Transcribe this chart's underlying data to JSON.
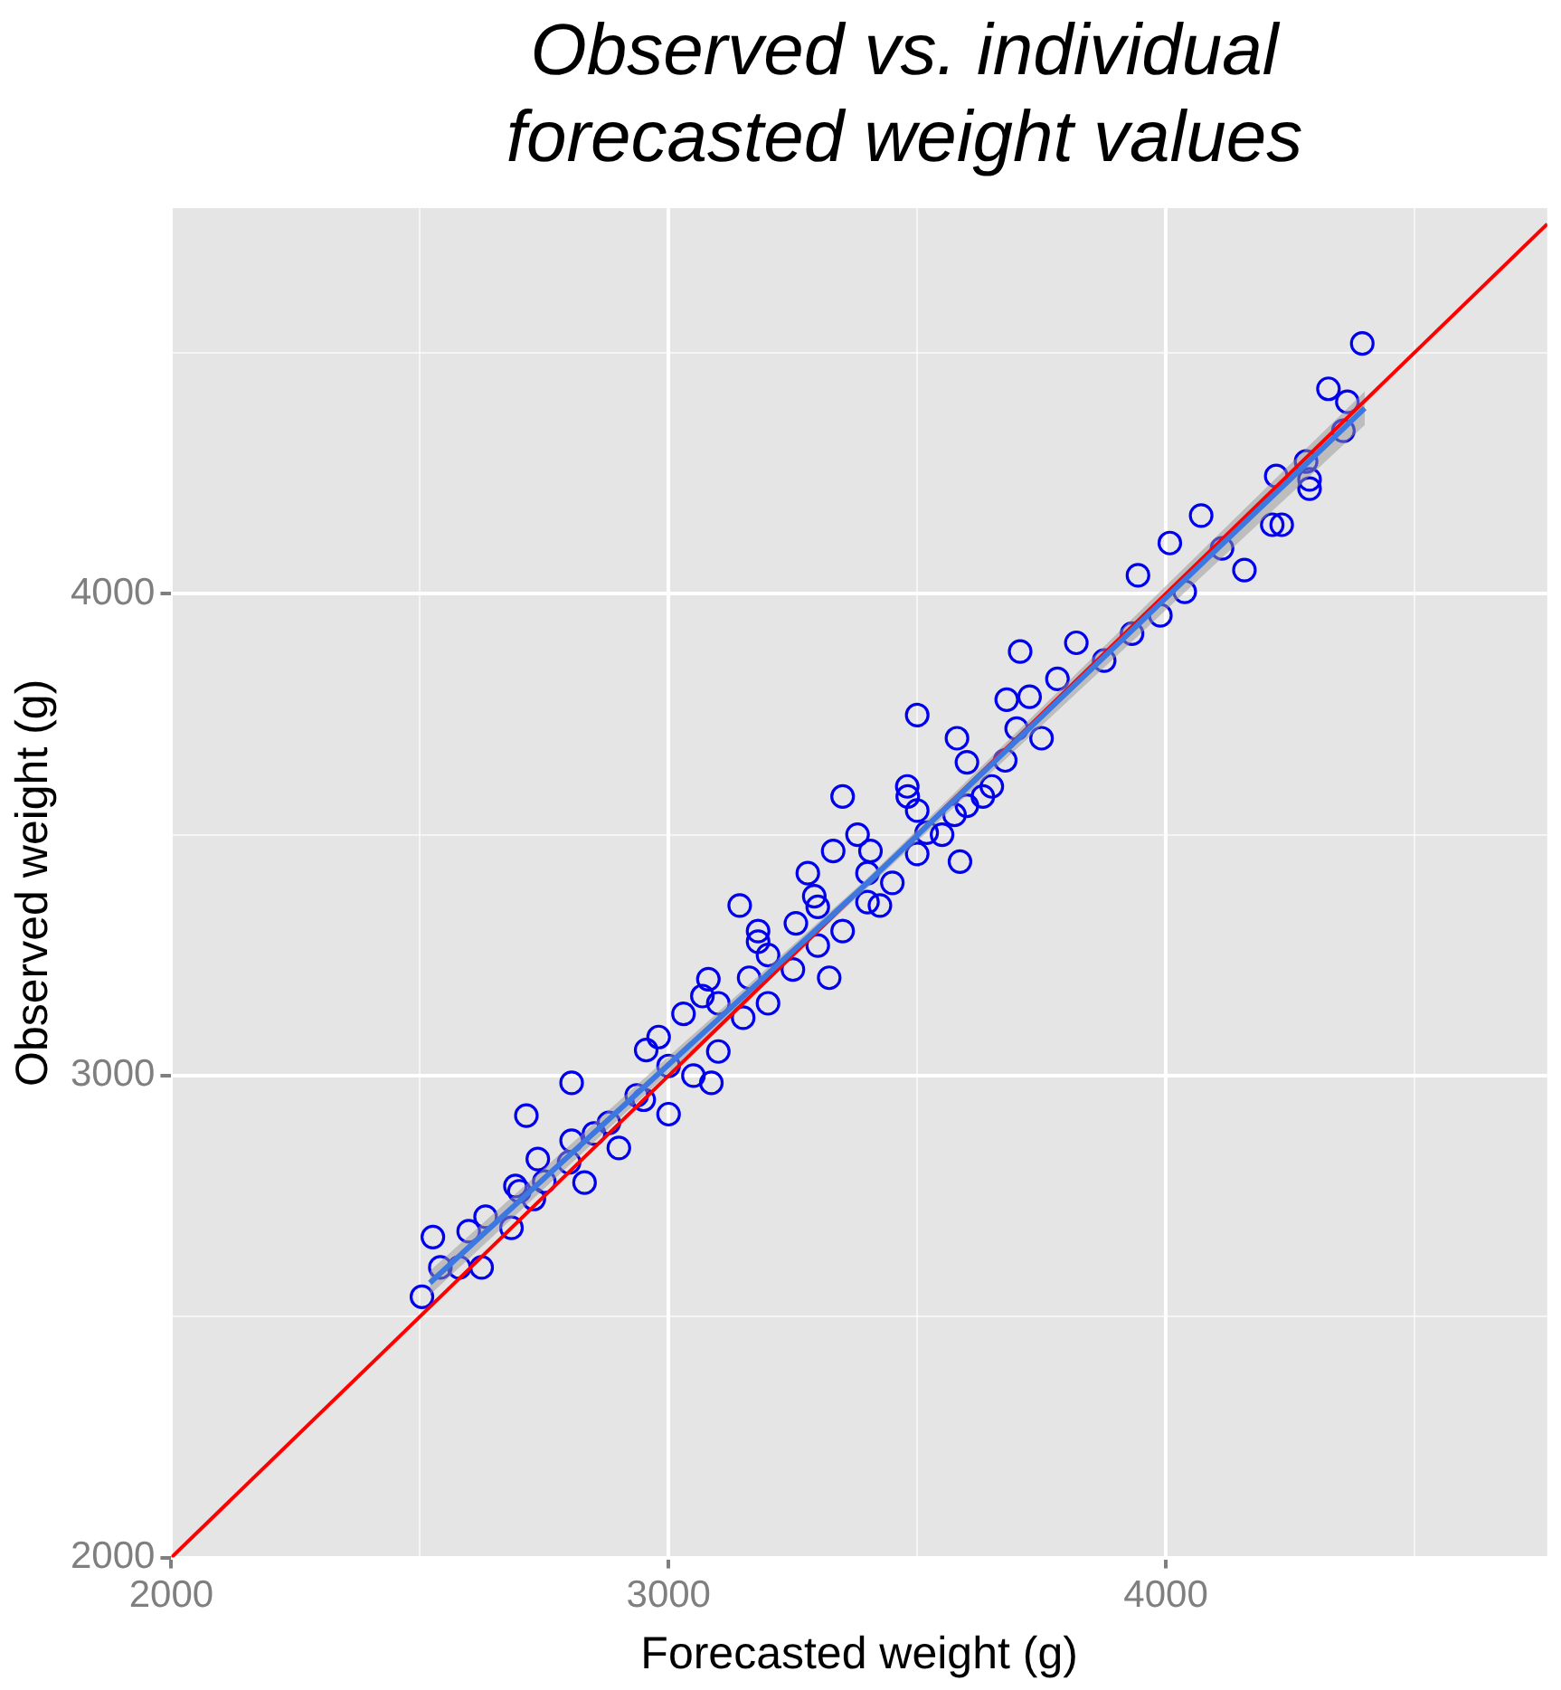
{
  "chart_data": {
    "type": "scatter",
    "title": "Observed vs. individual forecasted weight values",
    "xlabel": "Forecasted weight (g)",
    "ylabel": "Observed weight (g)",
    "xlim": [
      2000,
      4767
    ],
    "ylim": [
      2000,
      4800
    ],
    "xticks": [
      2000,
      {
        "value": 2500,
        "label": null
      },
      3000,
      {
        "value": 3500,
        "label": null
      },
      4000,
      {
        "value": 4500,
        "label": null
      }
    ],
    "yticks": [
      2000,
      {
        "value": 2500,
        "label": null
      },
      3000,
      {
        "value": 3500,
        "label": null
      },
      4000,
      {
        "value": 4500,
        "label": null
      }
    ],
    "grid": true,
    "legend": false,
    "series": [
      {
        "marker": "circle",
        "color": "#0000ee",
        "x": [
          2526,
          2504,
          2541,
          2598,
          2632,
          2579,
          2624,
          2692,
          2684,
          2729,
          2737,
          2714,
          2805,
          2805,
          2831,
          2880,
          2936,
          3086,
          3030,
          2955,
          3068,
          3162,
          3180,
          3143,
          3256,
          3323,
          3350,
          3331,
          3293,
          3406,
          3425,
          3481,
          3500,
          3519,
          3575,
          3586,
          3632,
          3677,
          3726,
          3707,
          3782,
          3820,
          3876,
          3932,
          3989,
          3944,
          4008,
          4071,
          4113,
          4214,
          4222,
          4289,
          4289,
          4282,
          4327,
          4365,
          4357,
          4395,
          4038,
          4158,
          4233,
          2950,
          3000,
          3050,
          3100,
          3150,
          3200,
          3250,
          3300,
          3350,
          3400,
          3450,
          3500,
          3550,
          3600,
          3650,
          3700,
          3750,
          2850,
          2900,
          2800,
          2750,
          2700,
          3000,
          3100,
          3200,
          3300,
          3400,
          3500,
          3600,
          2980,
          3080,
          3180,
          3280,
          3380,
          3480,
          3580,
          3680
        ],
        "values": [
          2665,
          2541,
          2602,
          2677,
          2707,
          2602,
          2602,
          2771,
          2684,
          2744,
          2827,
          2917,
          2985,
          2865,
          2778,
          2902,
          2959,
          2985,
          3128,
          3053,
          3165,
          3203,
          3278,
          3353,
          3316,
          3203,
          3579,
          3466,
          3372,
          3466,
          3353,
          3579,
          3748,
          3504,
          3541,
          3444,
          3579,
          3654,
          3786,
          3880,
          3823,
          3898,
          3861,
          3917,
          3955,
          4038,
          4105,
          4162,
          4094,
          4143,
          4244,
          4237,
          4218,
          4274,
          4425,
          4398,
          4338,
          4519,
          4004,
          4049,
          4143,
          2950,
          3020,
          3000,
          3150,
          3120,
          3250,
          3220,
          3350,
          3300,
          3420,
          3400,
          3550,
          3500,
          3650,
          3600,
          3720,
          3700,
          2880,
          2850,
          2820,
          2780,
          2760,
          2920,
          3050,
          3150,
          3270,
          3360,
          3460,
          3560,
          3080,
          3200,
          3300,
          3420,
          3500,
          3600,
          3700,
          3780
        ]
      },
      {
        "type": "line",
        "color": "#3d78e0",
        "x": [
          2520,
          3400,
          4400
        ],
        "values": [
          2570,
          3400,
          4385
        ],
        "lower": [
          2545,
          3390,
          4350
        ],
        "upper": [
          2595,
          3410,
          4420
        ]
      },
      {
        "type": "line",
        "color": "#ff0000",
        "x": [
          2000,
          4767
        ],
        "values": [
          2000,
          4767
        ]
      }
    ]
  }
}
